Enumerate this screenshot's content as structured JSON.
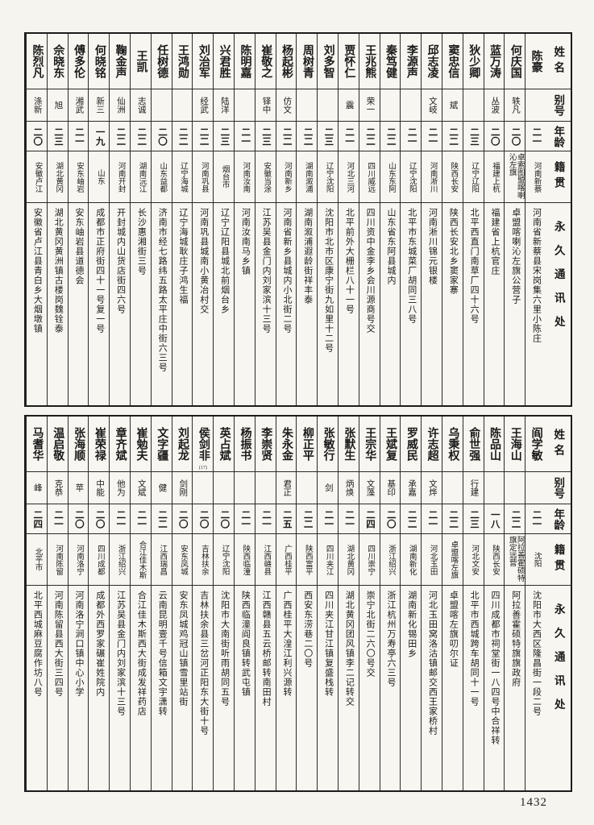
{
  "page": {
    "number": "1432"
  },
  "headers": {
    "name": "姓名",
    "alias": "别号",
    "age": "年龄",
    "native": "籍贯",
    "address": "永久通讯处"
  },
  "tables": [
    {
      "persons": [
        {
          "name": "陈豪",
          "alias": "",
          "age": "二一",
          "native": "河南新蔡",
          "address": "河南省新蔡县宋岗集六里小陈庄"
        },
        {
          "name": "何庆国",
          "alias": "轶凡",
          "age": "二〇",
          "native": "卓索图盟喀喇沁左旗",
          "address": "卓盟喀喇沁左旗公营子"
        },
        {
          "name": "蓝万涛",
          "alias": "丛波",
          "age": "二〇",
          "native": "福建上杭",
          "address": "福建省上杭官庄"
        },
        {
          "name": "狄少卿",
          "alias": "",
          "age": "二三",
          "native": "辽宁辽阳",
          "address": "北平西直门南草厂四十六号"
        },
        {
          "name": "窦忠信",
          "alias": "斌",
          "age": "二二",
          "native": "陕西长安",
          "address": "陕西长安北乡窦家寨"
        },
        {
          "name": "邱志凌",
          "alias": "文岐",
          "age": "二一",
          "native": "河南淅川",
          "address": "河南淅川锦元银楼"
        },
        {
          "name": "李源声",
          "alias": "",
          "age": "二一",
          "native": "辽宁沈阳",
          "address": "北平市东城菜厂胡同三八号"
        },
        {
          "name": "秦笃健",
          "alias": "",
          "age": "二二",
          "native": "山东东阿",
          "address": "山东省东阿县城内"
        },
        {
          "name": "王兆熊",
          "alias": "荣一",
          "age": "二二",
          "native": "四川威远",
          "address": "四川资中金李乡会川源商号交"
        },
        {
          "name": "贾怀仁",
          "alias": "震",
          "age": "二一",
          "native": "河北三河",
          "address": "北平前外大栅栏八十一号"
        },
        {
          "name": "刘多智",
          "alias": "",
          "age": "二三",
          "native": "辽宁沈阳",
          "address": "沈阳市北市区康宁街九如里十二号"
        },
        {
          "name": "周树青",
          "alias": "",
          "age": "二二",
          "native": "湖南溆浦",
          "address": "湖南溆浦遐龄街祥丰泰"
        },
        {
          "name": "杨起彬",
          "alias": "仿文",
          "age": "二二",
          "native": "河南新乡",
          "address": "河南省新乡县城内小北街二号"
        },
        {
          "name": "崔敬之",
          "alias": "铎中",
          "age": "二三",
          "native": "安徽当涂",
          "address": "江苏吴县金门内刘家滨十三号"
        },
        {
          "name": "陈明嘉",
          "alias": "",
          "age": "二一",
          "native": "河南汝南",
          "address": "河南汝南马乡镇"
        },
        {
          "name": "兴君胜",
          "alias": "陆洋",
          "age": "二三",
          "native": "烟台市",
          "address": "辽宁辽阳县城北前烟台乡"
        },
        {
          "name": "刘治军",
          "alias": "经武",
          "age": "二二",
          "native": "河南巩县",
          "address": "河南巩县城南小黄冶村交"
        },
        {
          "name": "王鸿勋",
          "alias": "",
          "age": "二二",
          "native": "辽宁海城",
          "address": "辽宁海城耿庄子鸿生福"
        },
        {
          "name": "任树德",
          "alias": "",
          "age": "二〇",
          "native": "山东益都",
          "address": "济南市经七路纬五路太平庄中街六三号"
        },
        {
          "name": "王凯",
          "alias": "志诚",
          "age": "二二",
          "native": "湖南沅江",
          "address": "长沙惠湘街三号"
        },
        {
          "name": "鞠金声",
          "alias": "仙洲",
          "age": "二二",
          "native": "河南开封",
          "address": "开封城内山货店街四六号"
        },
        {
          "name": "何晓铭",
          "alias": "新三",
          "age": "一九",
          "native": "山东",
          "address": "成都市正府街四十一号复一号"
        },
        {
          "name": "傅多伦",
          "alias": "湘武",
          "age": "二一",
          "native": "安东岫岩",
          "address": "安东岫岩县道德会"
        },
        {
          "name": "佘晓东",
          "alias": "旭",
          "age": "二三",
          "native": "湖北黄冈",
          "address": "湖北黄冈黄洲镇古楼岗魏铨泰"
        },
        {
          "name": "陈烈凡",
          "alias": "涤新",
          "age": "二〇",
          "native": "安徽卢江",
          "address": "安徽省卢江县青白乡大烟墩镇"
        }
      ]
    },
    {
      "persons": [
        {
          "name": "阎学敏",
          "alias": "",
          "age": "二一",
          "native": "沈阳",
          "address": "沈阳市大西区隆昌街一段二号"
        },
        {
          "name": "王海山",
          "alias": "",
          "age": "二二",
          "native": "阿拉善霍硕特旗定远营",
          "address": "阿拉善霍硕特旗旗政府"
        },
        {
          "name": "陈品山",
          "alias": "",
          "age": "一八",
          "native": "陕西长安",
          "address": "四川成都市祠堂街一八四号中合祥转"
        },
        {
          "name": "俞世强",
          "alias": "行建",
          "age": "二三",
          "native": "河北文安",
          "address": "北平市西城跨车胡同十一号"
        },
        {
          "name": "乌秉权",
          "alias": "",
          "age": "二二",
          "native": "卓盟喀左旗",
          "address": "卓盟喀左旗叨尔证"
        },
        {
          "name": "许志超",
          "alias": "文烨",
          "age": "二一",
          "native": "河北玉田",
          "address": "河北玉田窝洛沽镇邮交西王家桥村"
        },
        {
          "name": "罗威民",
          "alias": "承嘉",
          "age": "二二",
          "native": "湖南新化",
          "address": "湖南新化锡田乡"
        },
        {
          "name": "王斌复",
          "alias": "基印",
          "age": "二〇",
          "native": "浙江绍兴",
          "address": "浙江杭州万寿亭六三号"
        },
        {
          "name": "王宗华",
          "alias": "文藻",
          "age": "二四",
          "native": "四川崇宁",
          "address": "崇宁北街二六〇号交"
        },
        {
          "name": "张默生",
          "alias": "炳焕",
          "age": "二一",
          "native": "湖北黄冈",
          "address": "湖北黄冈团风镇李二记转交"
        },
        {
          "name": "张敏行",
          "alias": "剑",
          "age": "二一",
          "native": "四川夹江",
          "address": "四川夹江甘江镇复盛栈转"
        },
        {
          "name": "柳正平",
          "alias": "",
          "age": "二二",
          "native": "陕西富平",
          "address": "西安东涝巷二〇号"
        },
        {
          "name": "朱永金",
          "alias": "君正",
          "age": "二五",
          "native": "广西桂平",
          "address": "广西桂平大湟江利兴源转"
        },
        {
          "name": "李崇贤",
          "alias": "",
          "age": "二一",
          "native": "江西赣县",
          "address": "江西赣县五云桥邮转南田村"
        },
        {
          "name": "杨振书",
          "alias": "",
          "age": "二一",
          "native": "陕西临潼",
          "address": "陕西临潼阎良镇转武屯镇"
        },
        {
          "name": "英占斌",
          "alias": "",
          "age": "二〇",
          "native": "辽宁沈阳",
          "address": "沈阳市大南街听雨胡同五号"
        },
        {
          "name": "侯剑非",
          "alias": "",
          "age": "二〇",
          "native": "吉林扶余",
          "address": "吉林扶余县三岔河正阳东大街十号",
          "note": "(17)"
        },
        {
          "name": "刘起龙",
          "alias": "剑刚",
          "age": "二〇",
          "native": "安东凤城",
          "address": "安东凤城鸡冠山镇雪里站街"
        },
        {
          "name": "文字疆",
          "alias": "健",
          "age": "二二",
          "native": "江西瑞昌",
          "address": "云南昆明壹千号信箱文宇潇转"
        },
        {
          "name": "崔勉夫",
          "alias": "文斌",
          "age": "二一",
          "native": "合江佳木斯",
          "address": "合江佳木斯西大街成发祥药店"
        },
        {
          "name": "章齐斌",
          "alias": "他为",
          "age": "二一",
          "native": "浙江绍兴",
          "address": "江苏吴县金门内刘家滨十三号"
        },
        {
          "name": "崔荣禄",
          "alias": "中能",
          "age": "二〇",
          "native": "四川成都",
          "address": "成都外西罗家碾崔姓院内"
        },
        {
          "name": "张海顺",
          "alias": "苹",
          "age": "二〇",
          "native": "河南洛宁",
          "address": "河南洛宁涧口镇中心小学"
        },
        {
          "name": "温启敬",
          "alias": "克恭",
          "age": "二一",
          "native": "河南陈留",
          "address": "河南陈留县西大街三四号"
        },
        {
          "name": "马耆华",
          "alias": "峰",
          "age": "二四",
          "native": "北平市",
          "address": "北平西城麻豆腐作坊八号"
        }
      ]
    }
  ]
}
